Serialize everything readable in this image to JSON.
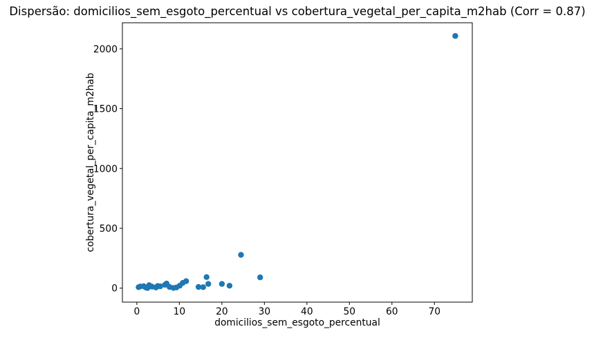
{
  "figure": {
    "background": "#ffffff",
    "text_color": "#000000"
  },
  "chart_data": {
    "type": "scatter",
    "title": "Dispersão: domicilios_sem_esgoto_percentual vs cobertura_vegetal_per_capita_m2hab (Corr = 0.87)",
    "xlabel": "domicilios_sem_esgoto_percentual",
    "ylabel": "cobertura_vegetal_per_capita_m2hab",
    "correlation": 0.87,
    "xlim": [
      -3.4,
      78.9
    ],
    "ylim": [
      -117,
      2218
    ],
    "xticks": [
      0,
      10,
      20,
      30,
      40,
      50,
      60,
      70
    ],
    "yticks": [
      0,
      500,
      1000,
      1500,
      2000
    ],
    "grid": false,
    "legend": "none",
    "marker_color": "#1f77b4",
    "marker_radius": 4.2,
    "axis_color": "#000000",
    "points": [
      [
        0.4,
        8
      ],
      [
        0.8,
        14
      ],
      [
        1.6,
        16
      ],
      [
        2.1,
        5
      ],
      [
        2.5,
        1
      ],
      [
        2.9,
        25
      ],
      [
        3.6,
        12
      ],
      [
        4.5,
        5
      ],
      [
        4.9,
        18
      ],
      [
        5.5,
        15
      ],
      [
        6.6,
        28
      ],
      [
        7.0,
        38
      ],
      [
        7.7,
        10
      ],
      [
        8.6,
        2
      ],
      [
        9.3,
        6
      ],
      [
        10.1,
        21
      ],
      [
        10.8,
        44
      ],
      [
        11.6,
        58
      ],
      [
        14.5,
        10
      ],
      [
        15.6,
        8
      ],
      [
        16.4,
        92
      ],
      [
        16.8,
        35
      ],
      [
        20.0,
        35
      ],
      [
        21.8,
        20
      ],
      [
        24.5,
        278
      ],
      [
        29.0,
        90
      ],
      [
        74.9,
        2108
      ]
    ]
  }
}
